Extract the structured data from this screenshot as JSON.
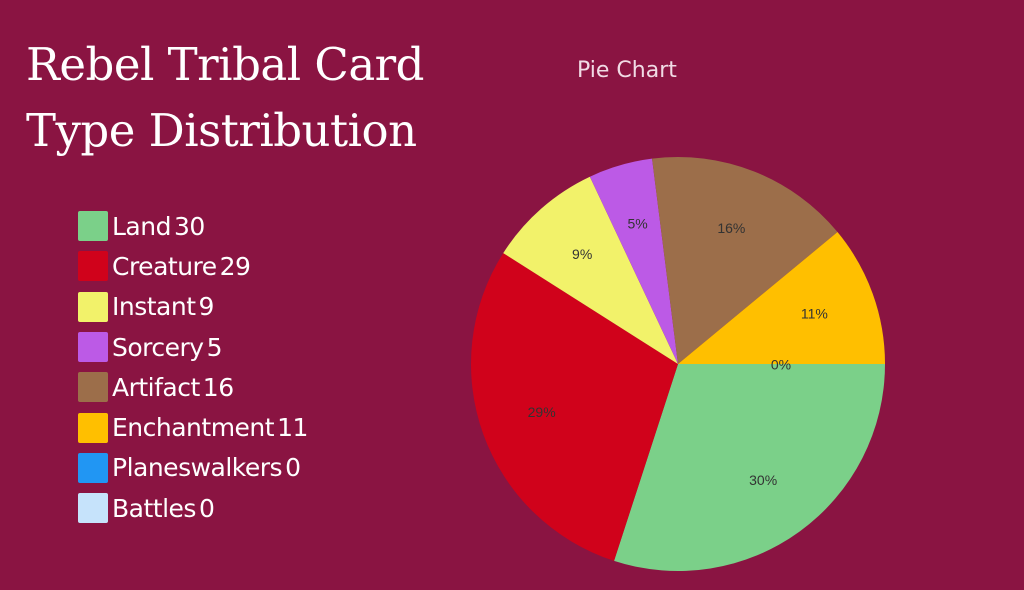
{
  "header": {
    "title_line1": "Rebel Tribal Card",
    "title_line2": "Type Distribution",
    "chart_subtitle": "Pie Chart"
  },
  "legend": [
    {
      "label": "Land",
      "value": "30",
      "color": "#7bd089"
    },
    {
      "label": "Creature",
      "value": "29",
      "color": "#d0021b"
    },
    {
      "label": "Instant",
      "value": "9",
      "color": "#f2f26a"
    },
    {
      "label": "Sorcery",
      "value": "5",
      "color": "#bc5ae6"
    },
    {
      "label": "Artifact",
      "value": "16",
      "color": "#9c6e4a"
    },
    {
      "label": "Enchantment",
      "value": "11",
      "color": "#ffbf00"
    },
    {
      "label": "Planeswalkers",
      "value": "0",
      "color": "#2196f3"
    },
    {
      "label": "Battles",
      "value": "0",
      "color": "#c6e3fb"
    }
  ],
  "colors": {
    "background": "#8a1442",
    "text": "#ffffff"
  },
  "chart_data": {
    "type": "pie",
    "title": "Rebel Tribal Card Type Distribution",
    "subtitle": "Pie Chart",
    "categories": [
      "Land",
      "Creature",
      "Instant",
      "Sorcery",
      "Artifact",
      "Enchantment",
      "Planeswalkers",
      "Battles"
    ],
    "values": [
      30,
      29,
      9,
      5,
      16,
      11,
      0,
      0
    ],
    "percent_labels": [
      "30%",
      "29%",
      "9%",
      "5%",
      "16%",
      "11%",
      "0%",
      "0%"
    ],
    "colors": [
      "#7bd089",
      "#d0021b",
      "#f2f26a",
      "#bc5ae6",
      "#9c6e4a",
      "#ffbf00",
      "#2196f3",
      "#c6e3fb"
    ],
    "start_angle": "3 o'clock, clockwise",
    "legend_position": "left"
  }
}
